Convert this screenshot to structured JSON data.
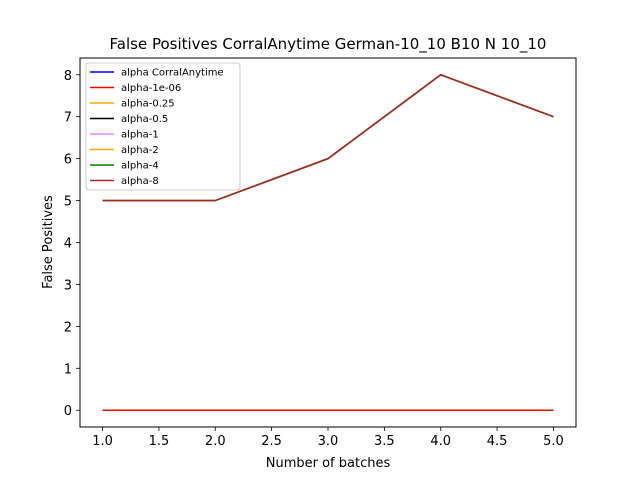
{
  "chart_data": {
    "type": "line",
    "title": "False Positives CorralAnytime German-10_10 B10 N 10_10",
    "xlabel": "Number of batches",
    "ylabel": "False Positives",
    "x": [
      1,
      2,
      3,
      4,
      5
    ],
    "xlim": [
      0.8,
      5.2
    ],
    "ylim": [
      -0.4,
      8.4
    ],
    "xticks": [
      "1.0",
      "1.5",
      "2.0",
      "2.5",
      "3.0",
      "3.5",
      "4.0",
      "4.5",
      "5.0"
    ],
    "yticks": [
      "0",
      "1",
      "2",
      "3",
      "4",
      "5",
      "6",
      "7",
      "8"
    ],
    "legend_position": "top-left",
    "grid": false,
    "series": [
      {
        "name": "alpha CorralAnytime",
        "color": "#0000ff",
        "values": [
          0,
          0,
          0,
          0,
          0
        ]
      },
      {
        "name": "alpha-1e-06",
        "color": "#ff0000",
        "values": [
          0,
          0,
          0,
          0,
          0
        ]
      },
      {
        "name": "alpha-0.25",
        "color": "#ffa500",
        "values": [
          5,
          5,
          6,
          8,
          7
        ]
      },
      {
        "name": "alpha-0.5",
        "color": "#000000",
        "values": [
          5,
          5,
          6,
          8,
          7
        ]
      },
      {
        "name": "alpha-1",
        "color": "#ee82ee",
        "values": [
          5,
          5,
          6,
          8,
          7
        ]
      },
      {
        "name": "alpha-2",
        "color": "#ffa500",
        "values": [
          5,
          5,
          6,
          8,
          7
        ]
      },
      {
        "name": "alpha-4",
        "color": "#008000",
        "values": [
          5,
          5,
          6,
          8,
          7
        ]
      },
      {
        "name": "alpha-8",
        "color": "#a52a2a",
        "values": [
          5,
          5,
          6,
          8,
          7
        ]
      }
    ]
  }
}
